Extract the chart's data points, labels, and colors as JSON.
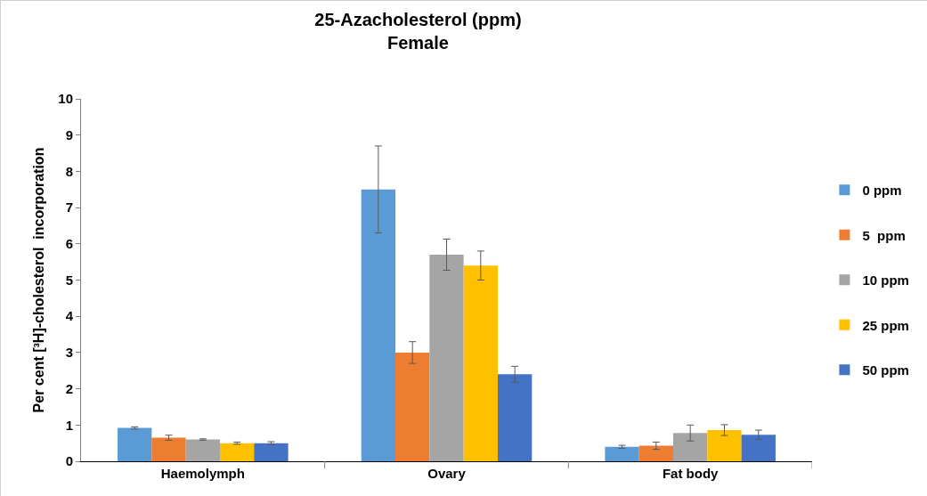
{
  "chart_data": {
    "type": "bar",
    "title": "25-Azacholesterol (ppm)\nFemale",
    "ylabel": "Per cent [³H]-cholesterol  incorporation",
    "categories": [
      "Haemolymph",
      "Ovary",
      "Fat body"
    ],
    "series": [
      {
        "name": "0 ppm",
        "color": "#5b9bd5",
        "values": [
          0.92,
          7.5,
          0.4
        ],
        "errors": [
          0.03,
          1.2,
          0.04
        ]
      },
      {
        "name": "5  ppm",
        "color": "#ed7d31",
        "values": [
          0.65,
          3.0,
          0.43
        ],
        "errors": [
          0.07,
          0.3,
          0.1
        ]
      },
      {
        "name": "10 ppm",
        "color": "#a5a5a5",
        "values": [
          0.6,
          5.7,
          0.78
        ],
        "errors": [
          0.02,
          0.43,
          0.22
        ]
      },
      {
        "name": "25 ppm",
        "color": "#ffc000",
        "values": [
          0.5,
          5.4,
          0.86
        ],
        "errors": [
          0.03,
          0.4,
          0.15
        ]
      },
      {
        "name": "50 ppm",
        "color": "#4472c4",
        "values": [
          0.5,
          2.4,
          0.73
        ],
        "errors": [
          0.04,
          0.22,
          0.13
        ]
      }
    ],
    "ylim": [
      0,
      10
    ],
    "yticks": [
      0,
      1,
      2,
      3,
      4,
      5,
      6,
      7,
      8,
      9,
      10
    ],
    "grid": false,
    "legend": "right"
  }
}
